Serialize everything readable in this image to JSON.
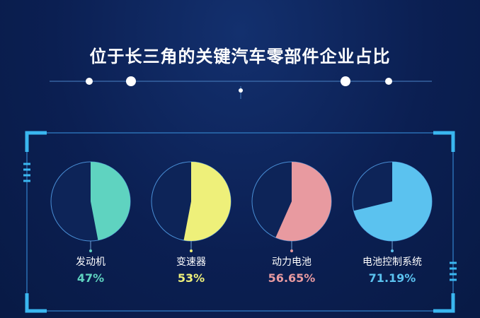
{
  "title": "位于长三角的关键汽车零部件企业占比",
  "chart_data": {
    "type": "pie",
    "title": "位于长三角的关键汽车零部件企业占比",
    "items": [
      {
        "name": "发动机",
        "value": 47,
        "label": "47%",
        "color": "#5fd3c0"
      },
      {
        "name": "变速器",
        "value": 53,
        "label": "53%",
        "color": "#eef07a"
      },
      {
        "name": "动力电池",
        "value": 56.65,
        "label": "56.65%",
        "color": "#e89aa0"
      },
      {
        "name": "电池控制系统",
        "value": 71.19,
        "label": "71.19%",
        "color": "#5bc2ef"
      }
    ]
  },
  "colors": {
    "background": "#0b1f52",
    "frame": "#3ab7f0",
    "pie_base": "#0d2458",
    "pie_outline": "#4a8fd6"
  }
}
